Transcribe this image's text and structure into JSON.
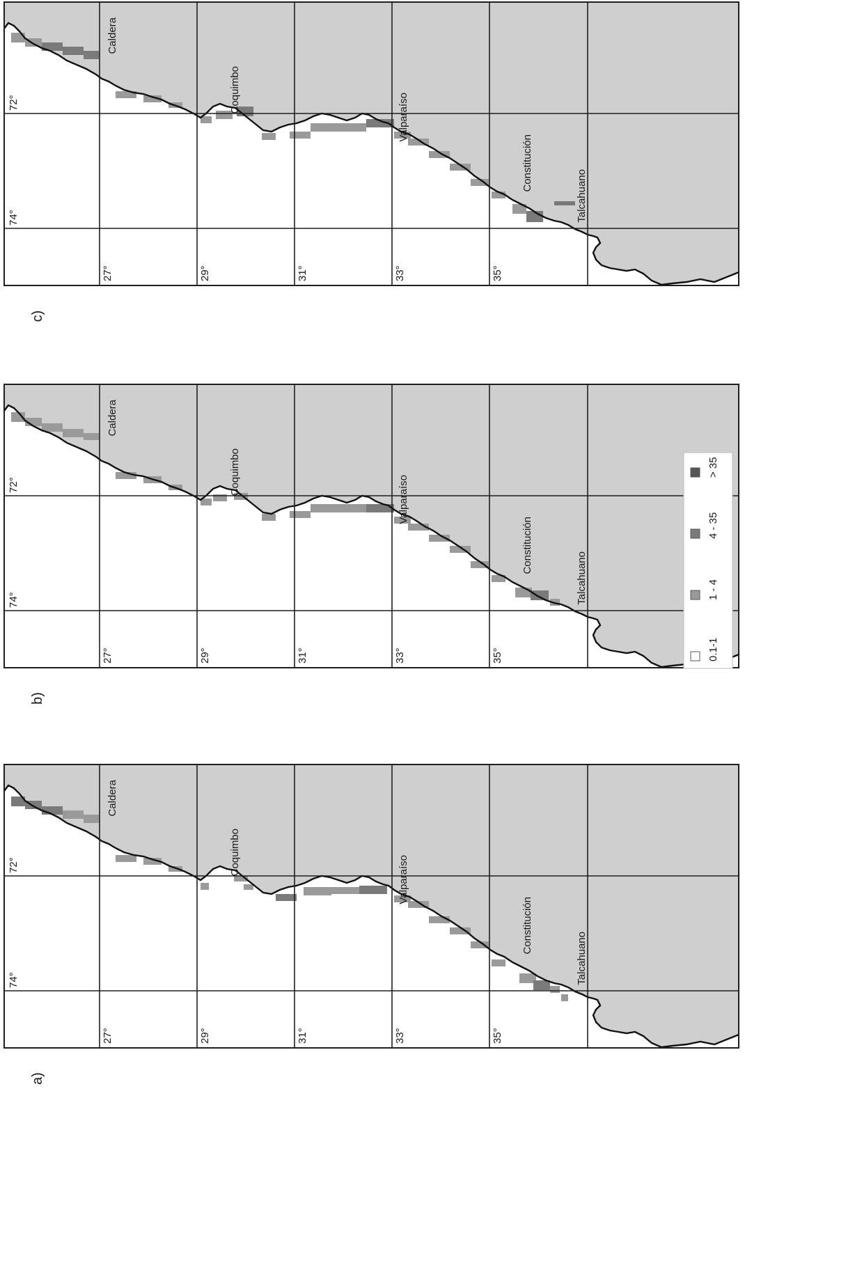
{
  "panels": [
    {
      "id": "a",
      "label": "a)"
    },
    {
      "id": "b",
      "label": "b)"
    },
    {
      "id": "c",
      "label": "c)"
    }
  ],
  "latitudes": [
    "27°",
    "29°",
    "31°",
    "33°",
    "35°"
  ],
  "longitudes": [
    "74°",
    "72°"
  ],
  "cities": [
    "Caldera",
    "Coquimbo",
    "Valparaíso",
    "Constitución",
    "Talcahuano"
  ],
  "legend": [
    {
      "label": "0.1-1",
      "color": "#ffffff"
    },
    {
      "label": "1 - 4",
      "color": "#9a9a9a"
    },
    {
      "label": "4 - 35",
      "color": "#7a7a7a"
    },
    {
      "label": "> 35",
      "color": "#555555"
    }
  ],
  "colors": {
    "land": "#cfcfcf",
    "grid": "#1e1e1e",
    "coast": "#111111"
  }
}
